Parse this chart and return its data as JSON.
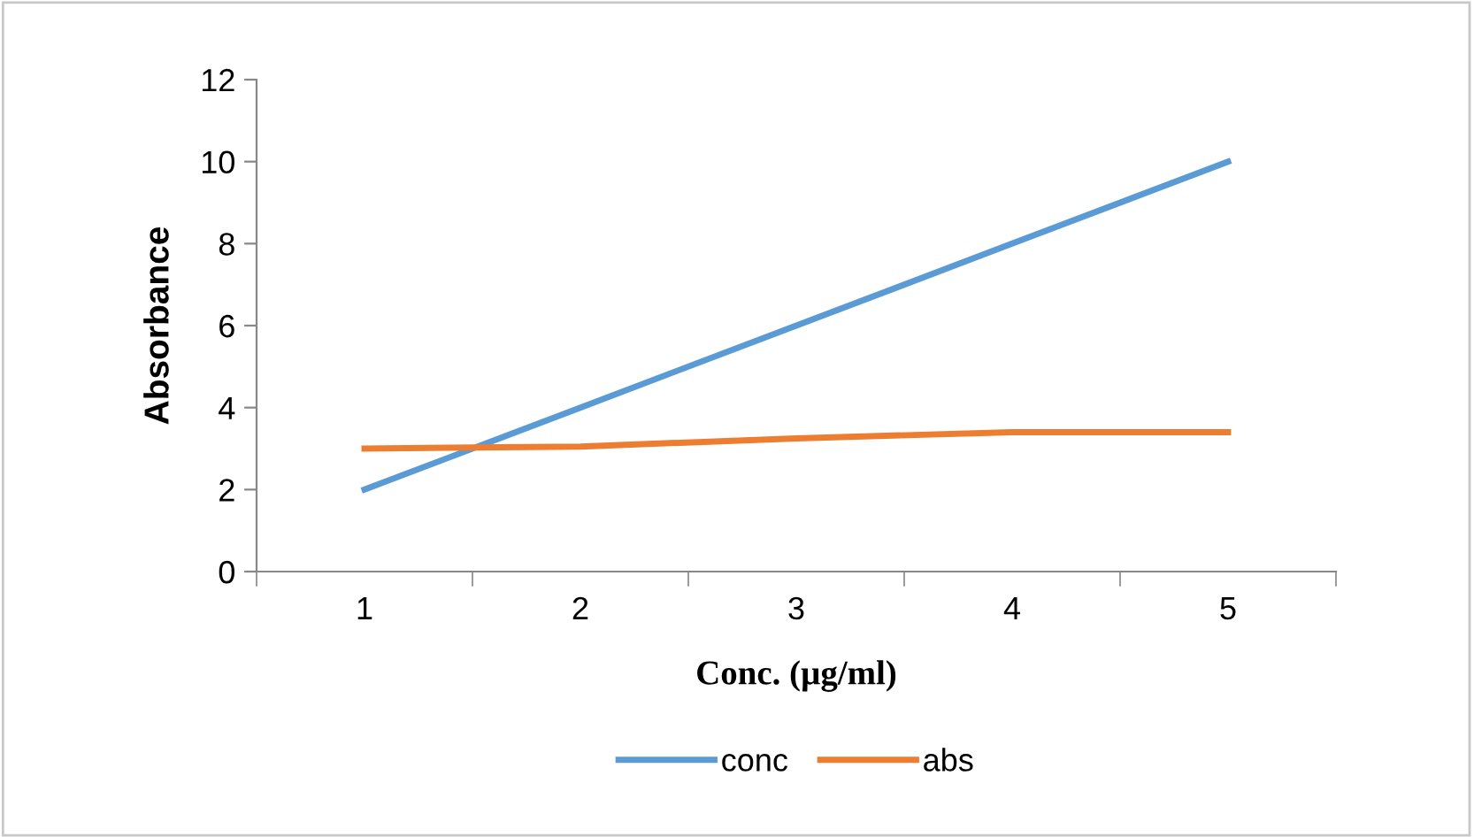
{
  "chart_data": {
    "type": "line",
    "xlabel": "Conc. (µg/ml)",
    "ylabel": "Absorbance",
    "categories": [
      "1",
      "2",
      "3",
      "4",
      "5"
    ],
    "series": [
      {
        "name": "conc",
        "color": "#5b9bd5",
        "values": [
          2,
          4,
          6,
          8,
          10
        ]
      },
      {
        "name": "abs",
        "color": "#ed7d31",
        "values": [
          3.0,
          3.05,
          3.25,
          3.4,
          3.4
        ]
      }
    ],
    "ylim": [
      0,
      12
    ],
    "yticks": [
      0,
      2,
      4,
      6,
      8,
      10,
      12
    ],
    "grid": false,
    "legend": "bottom",
    "marker": "none",
    "line_style": "solid"
  }
}
